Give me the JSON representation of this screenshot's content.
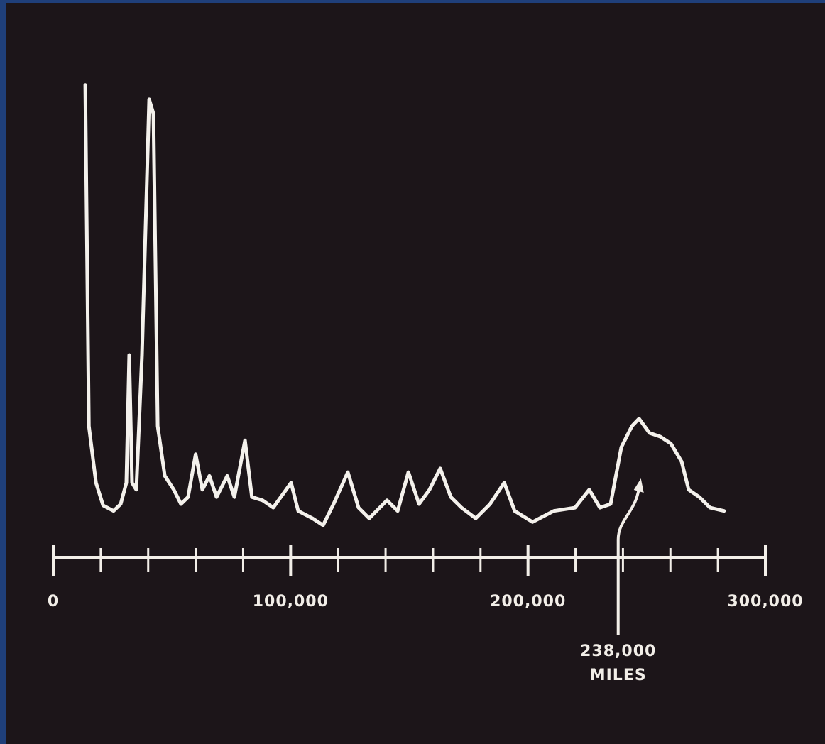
{
  "chart_data": {
    "type": "line",
    "x": [
      13500,
      15000,
      18000,
      21000,
      25400,
      28400,
      30800,
      32000,
      33200,
      35000,
      37400,
      40400,
      42200,
      44000,
      47000,
      50800,
      53800,
      56800,
      60000,
      62800,
      65800,
      68800,
      73300,
      76300,
      80800,
      83700,
      88200,
      92700,
      100200,
      103200,
      109200,
      113700,
      118100,
      124100,
      128600,
      133100,
      140600,
      145100,
      149600,
      154100,
      158500,
      163000,
      167500,
      172000,
      178000,
      184000,
      190000,
      194400,
      201900,
      210900,
      219800,
      225800,
      230300,
      234800,
      239300,
      243800,
      246800,
      251200,
      255700,
      260200,
      264700,
      267700,
      272200,
      276700,
      282600
    ],
    "series": [
      {
        "color": "#f4f1ec",
        "values": [
          98.5,
          24.6,
          12.3,
          7.4,
          6.2,
          7.7,
          12.3,
          40,
          12.3,
          10.8,
          40,
          95.4,
          92.3,
          24.6,
          13.8,
          10.8,
          7.7,
          9.2,
          18.5,
          10.8,
          13.8,
          9.2,
          13.8,
          9.2,
          21.5,
          9.2,
          8.5,
          6.9,
          12.3,
          6.2,
          4.6,
          3.1,
          7.7,
          14.6,
          6.9,
          4.6,
          8.5,
          6.2,
          14.6,
          7.7,
          10.8,
          15.4,
          9.2,
          6.9,
          4.6,
          7.7,
          12.3,
          6.2,
          3.8,
          6.2,
          6.9,
          10.8,
          6.9,
          7.7,
          20,
          24.6,
          26.2,
          23.1,
          22.3,
          20.8,
          16.9,
          10.8,
          9.2,
          6.9,
          6.2
        ]
      }
    ],
    "xlim": [
      0,
      300000
    ],
    "ylim": [
      0,
      100
    ],
    "xticks": [
      0,
      {
        "value": 100000,
        "label": "100,000"
      },
      {
        "value": 200000,
        "label": "200,000"
      },
      {
        "value": 300000,
        "label": "300,000"
      }
    ],
    "xminorticks": [
      20000,
      40000,
      60000,
      80000,
      120000,
      140000,
      160000,
      180000,
      220000,
      240000,
      260000,
      280000
    ],
    "annotation": {
      "x": 238000,
      "lines": [
        "238,000",
        "MILES"
      ]
    }
  }
}
